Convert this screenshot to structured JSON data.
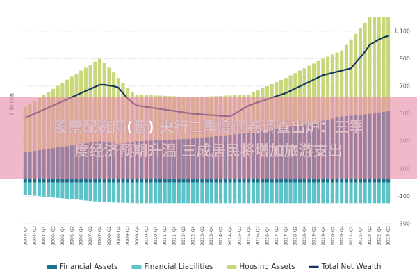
{
  "chart_data": {
    "type": "stacked-bar-line",
    "y_label": "€ Billion",
    "categories": [
      "2003-Q4",
      null,
      "2004-Q2",
      null,
      "2004-Q4",
      null,
      "2005-Q2",
      null,
      "2005-Q4",
      null,
      "2006-Q2",
      null,
      "2006-Q4",
      null,
      "2007-Q2",
      null,
      "2007-Q4",
      null,
      "2008-Q2",
      null,
      "2008-Q4",
      null,
      "2009-Q2",
      null,
      "2009-Q4",
      null,
      "2010-Q2",
      null,
      "2010-Q4",
      null,
      "2011-Q2",
      null,
      "2011-Q4",
      null,
      "2012-Q2",
      null,
      "2012-Q4",
      null,
      "2013-Q2",
      null,
      "2013-Q4",
      null,
      "2014-Q2",
      null,
      "2014-Q4",
      null,
      "2015-Q2",
      null,
      "2015-Q4",
      null,
      "2016-Q2",
      null,
      "2016-Q4",
      null,
      "2017-Q2",
      null,
      "2017-Q4",
      null,
      "2018-Q2",
      null,
      "2018-Q4",
      null,
      "2019-Q2",
      null,
      "2019-Q4",
      null,
      "2020-Q2",
      null,
      "2020-Q4",
      null,
      "2021-Q2",
      null,
      "2021-Q4",
      null,
      "2022-Q2",
      null,
      "2022-Q4",
      null,
      "2023-Q2"
    ],
    "series": [
      {
        "name": "Financial Assets",
        "kind": "bar",
        "color": "#1f6f8b",
        "values": [
          220,
          225,
          230,
          235,
          240,
          245,
          250,
          255,
          260,
          265,
          270,
          275,
          280,
          285,
          290,
          295,
          300,
          295,
          290,
          285,
          280,
          285,
          290,
          295,
          300,
          302,
          303,
          305,
          307,
          308,
          310,
          312,
          313,
          315,
          317,
          318,
          320,
          323,
          327,
          330,
          333,
          337,
          340,
          343,
          347,
          350,
          353,
          357,
          360,
          365,
          370,
          375,
          380,
          385,
          390,
          395,
          400,
          405,
          410,
          415,
          420,
          428,
          435,
          443,
          450,
          458,
          465,
          473,
          480,
          483,
          487,
          490,
          493,
          497,
          500,
          505,
          510,
          515,
          520
        ]
      },
      {
        "name": "Financial Liabilities",
        "kind": "bar",
        "color": "#5cc3c9",
        "values": [
          -90,
          -93,
          -96,
          -99,
          -103,
          -106,
          -109,
          -112,
          -115,
          -118,
          -121,
          -124,
          -127,
          -131,
          -134,
          -137,
          -140,
          -142,
          -143,
          -145,
          -146,
          -147,
          -148,
          -149,
          -150,
          -150,
          -150,
          -150,
          -150,
          -150,
          -150,
          -150,
          -150,
          -150,
          -150,
          -150,
          -150,
          -150,
          -150,
          -150,
          -150,
          -150,
          -150,
          -150,
          -150,
          -150,
          -150,
          -150,
          -150,
          -150,
          -150,
          -150,
          -150,
          -150,
          -150,
          -150,
          -150,
          -150,
          -150,
          -150,
          -150,
          -150,
          -150,
          -150,
          -150,
          -150,
          -150,
          -150,
          -150,
          -150,
          -150,
          -150,
          -150,
          -150,
          -150,
          -150,
          -150,
          -150,
          -150
        ]
      },
      {
        "name": "Housing Assets",
        "kind": "bar",
        "color": "#c9d77c",
        "values": [
          330,
          347,
          364,
          381,
          398,
          415,
          431,
          448,
          465,
          482,
          499,
          516,
          533,
          549,
          566,
          583,
          600,
          575,
          545,
          515,
          480,
          435,
          400,
          365,
          340,
          336,
          334,
          330,
          326,
          324,
          320,
          316,
          314,
          310,
          306,
          304,
          300,
          299,
          296,
          295,
          294,
          291,
          290,
          289,
          286,
          285,
          284,
          281,
          280,
          290,
          300,
          310,
          320,
          330,
          340,
          350,
          360,
          373,
          385,
          398,
          410,
          420,
          430,
          440,
          450,
          457,
          465,
          472,
          480,
          517,
          553,
          590,
          627,
          663,
          700,
          695,
          690,
          685,
          680
        ]
      },
      {
        "name": "Total Net Wealth",
        "kind": "line",
        "color": "#16365c",
        "values": [
          470,
          485,
          500,
          515,
          530,
          545,
          560,
          575,
          590,
          605,
          620,
          635,
          650,
          665,
          680,
          695,
          710,
          710,
          705,
          700,
          690,
          650,
          610,
          580,
          560,
          555,
          550,
          545,
          540,
          535,
          530,
          525,
          520,
          515,
          510,
          505,
          500,
          498,
          495,
          493,
          490,
          488,
          485,
          483,
          480,
          500,
          520,
          540,
          560,
          571,
          583,
          594,
          605,
          616,
          628,
          639,
          650,
          666,
          683,
          699,
          715,
          731,
          748,
          764,
          780,
          788,
          797,
          805,
          813,
          822,
          830,
          870,
          910,
          950,
          1000,
          1020,
          1040,
          1055,
          1065
        ]
      }
    ],
    "ylim": [
      -300,
      1200
    ],
    "yticks": [
      -300,
      -100,
      100,
      300,
      500,
      700,
      900,
      {
        "value": 1100,
        "label": "1,100"
      }
    ],
    "grid": true,
    "legend": "bottom",
    "banner": {
      "lines": [
        "股票配资网(晋) 央行二季度问卷调查出炉：三季",
        "度经济预期升温 三成居民将增加旅游支出"
      ],
      "color": "rgba(232,140,170,0.62)"
    }
  }
}
